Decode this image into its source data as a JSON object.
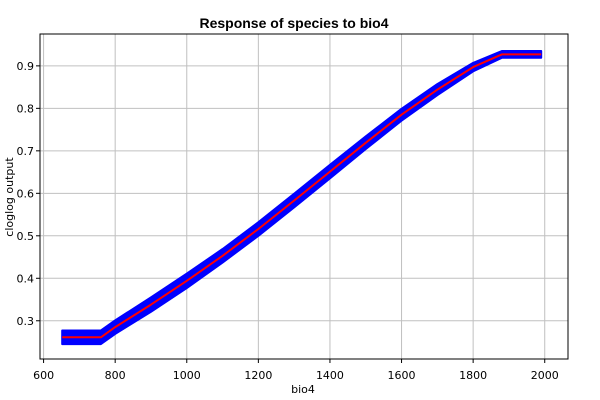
{
  "chart_data": {
    "type": "line",
    "title": "Response of species to bio4",
    "xlabel": "bio4",
    "ylabel": "cloglog output",
    "xlim": [
      590,
      2065
    ],
    "ylim": [
      0.21,
      0.975
    ],
    "x_ticks": [
      600,
      800,
      1000,
      1200,
      1400,
      1600,
      1800,
      2000
    ],
    "y_ticks": [
      0.3,
      0.4,
      0.5,
      0.6,
      0.7,
      0.8,
      0.9
    ],
    "grid": true,
    "series": [
      {
        "role": "band",
        "color": "#0000ff",
        "x": [
          652,
          760,
          800,
          900,
          1000,
          1100,
          1200,
          1300,
          1400,
          1500,
          1600,
          1700,
          1800,
          1880,
          1990
        ],
        "upper": [
          0.277,
          0.277,
          0.301,
          0.355,
          0.411,
          0.469,
          0.532,
          0.599,
          0.667,
          0.734,
          0.799,
          0.857,
          0.907,
          0.935,
          0.935
        ],
        "lower": [
          0.245,
          0.245,
          0.269,
          0.321,
          0.377,
          0.437,
          0.5,
          0.567,
          0.635,
          0.704,
          0.771,
          0.831,
          0.887,
          0.919,
          0.919
        ]
      },
      {
        "role": "mean",
        "color": "#ff0000",
        "x": [
          652,
          760,
          800,
          900,
          1000,
          1100,
          1200,
          1300,
          1400,
          1500,
          1600,
          1700,
          1800,
          1880,
          1990
        ],
        "y": [
          0.261,
          0.261,
          0.285,
          0.338,
          0.394,
          0.453,
          0.516,
          0.583,
          0.651,
          0.719,
          0.785,
          0.844,
          0.897,
          0.927,
          0.927
        ]
      }
    ]
  }
}
